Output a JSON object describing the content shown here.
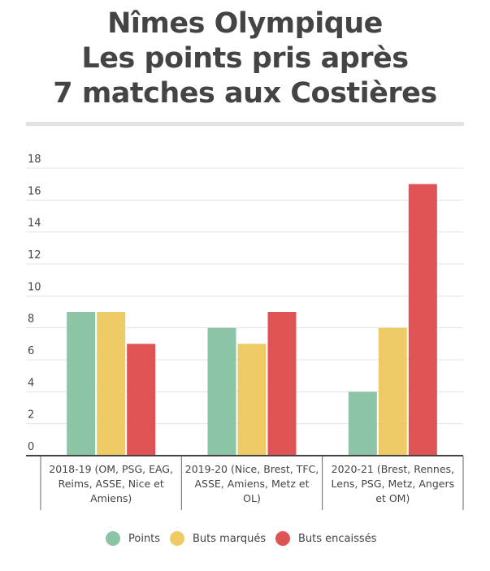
{
  "title_lines": [
    "Nîmes Olympique",
    "Les points pris après",
    "7 matches aux Costières"
  ],
  "colors": {
    "points": "#8cc4a6",
    "buts_marques": "#efcb65",
    "buts_encaisses": "#df5355"
  },
  "chart_data": {
    "type": "bar",
    "title": "Nîmes Olympique Les points pris après 7 matches aux Costières",
    "xlabel": "",
    "ylabel": "",
    "ylim": [
      0,
      18
    ],
    "yticks": [
      0,
      2,
      4,
      6,
      8,
      10,
      12,
      14,
      16,
      18
    ],
    "grid": true,
    "legend_position": "bottom",
    "categories": [
      [
        "2018-19 (OM, PSG, EAG,",
        "Reims, ASSE, Nice et",
        "Amiens)"
      ],
      [
        "2019-20 (Nice, Brest, TFC,",
        "ASSE, Amiens, Metz et",
        "OL)"
      ],
      [
        "2020-21 (Brest, Rennes,",
        "Lens, PSG, Metz, Angers",
        "et OM)"
      ]
    ],
    "series": [
      {
        "name": "Points",
        "color": "#8cc4a6",
        "values": [
          9,
          8,
          4
        ]
      },
      {
        "name": "Buts marqués",
        "color": "#efcb65",
        "values": [
          9,
          7,
          8
        ]
      },
      {
        "name": "Buts encaissés",
        "color": "#df5355",
        "values": [
          7,
          9,
          17
        ]
      }
    ]
  }
}
